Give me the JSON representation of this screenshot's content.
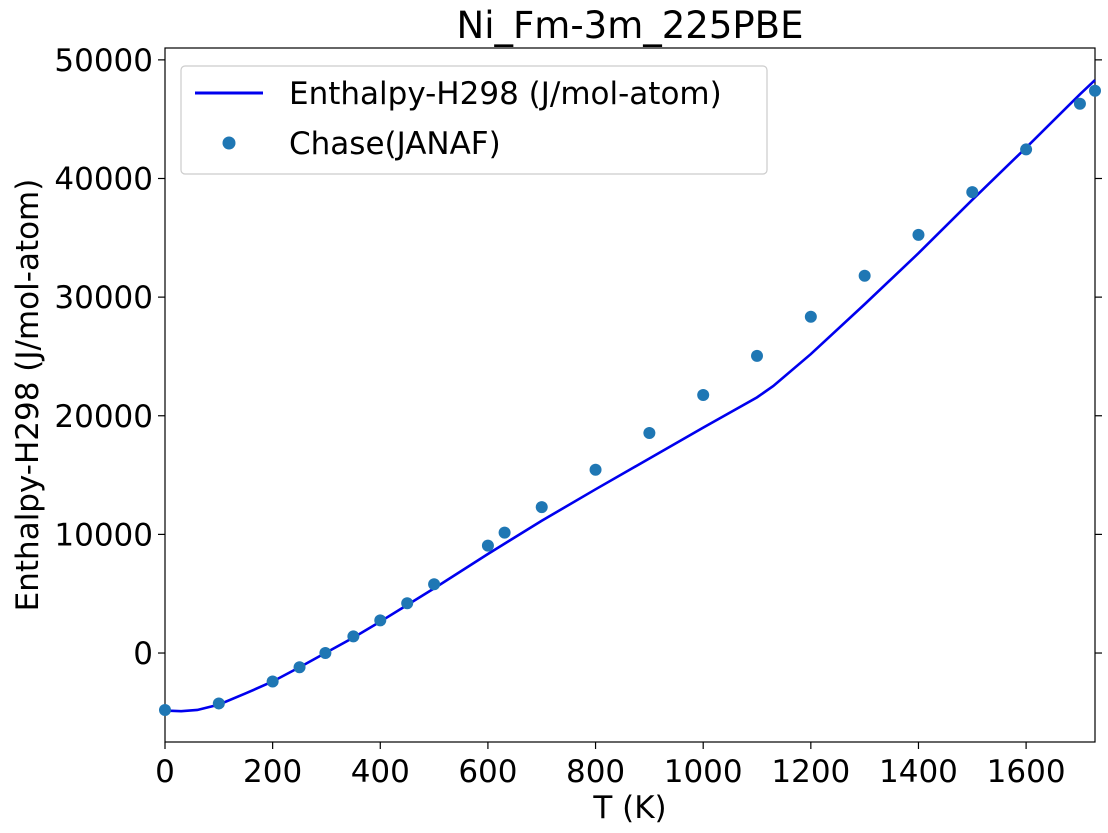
{
  "chart_data": {
    "type": "line",
    "title": "Ni_Fm-3m_225PBE",
    "xlabel": "T (K)",
    "ylabel": "Enthalpy-H298 (J/mol-atom)",
    "xlim": [
      0,
      1728
    ],
    "ylim": [
      -7500,
      51000
    ],
    "xticks": [
      0,
      200,
      400,
      600,
      800,
      1000,
      1200,
      1400,
      1600
    ],
    "yticks": [
      0,
      10000,
      20000,
      30000,
      40000,
      50000
    ],
    "grid": false,
    "legend_position": "top-left",
    "series": [
      {
        "name": "Enthalpy-H298 (J/mol-atom)",
        "kind": "line",
        "color": "#0000ee",
        "x": [
          0,
          30,
          60,
          100,
          150,
          200,
          250,
          298,
          350,
          400,
          450,
          500,
          600,
          700,
          800,
          900,
          1000,
          1100,
          1130,
          1200,
          1300,
          1400,
          1500,
          1600,
          1700,
          1728
        ],
        "y": [
          -4850,
          -4900,
          -4800,
          -4350,
          -3400,
          -2400,
          -1200,
          0,
          1300,
          2650,
          4050,
          5450,
          8350,
          11150,
          13800,
          16400,
          19000,
          21550,
          22500,
          25200,
          29400,
          33700,
          38200,
          42600,
          47100,
          48300
        ]
      },
      {
        "name": "Chase(JANAF)",
        "kind": "scatter",
        "color": "#1f77b4",
        "x": [
          0,
          100,
          200,
          250,
          298,
          350,
          400,
          450,
          500,
          600,
          631,
          700,
          800,
          900,
          1000,
          1100,
          1200,
          1300,
          1400,
          1500,
          1600,
          1700,
          1728
        ],
        "y": [
          -4800,
          -4250,
          -2400,
          -1200,
          0,
          1400,
          2750,
          4200,
          5800,
          9050,
          10150,
          12300,
          15450,
          18550,
          21750,
          25050,
          28350,
          31800,
          35250,
          38850,
          42450,
          46300,
          47400
        ]
      }
    ]
  }
}
